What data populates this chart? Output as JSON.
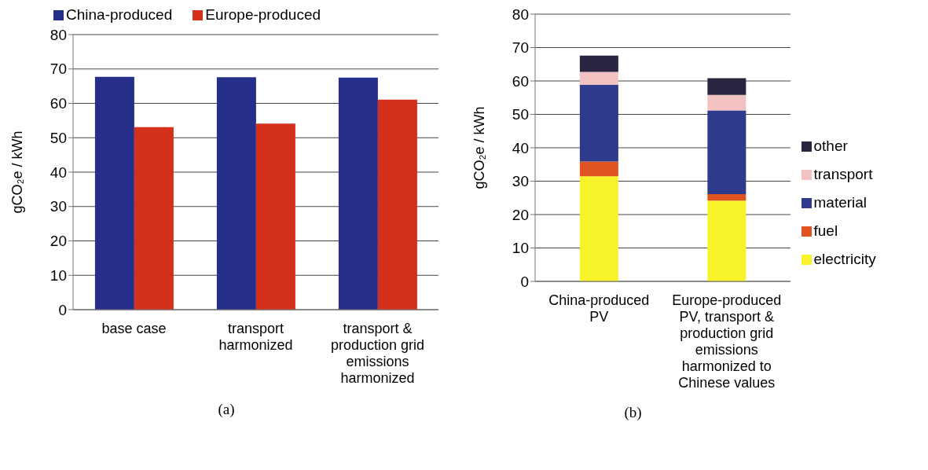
{
  "chart_data": [
    {
      "type": "bar",
      "categories": [
        "base case",
        "transport harmonized",
        "transport & production grid emissions harmonized"
      ],
      "ylabel": "gCO₂e / kWh",
      "ylim": [
        0,
        80
      ],
      "yticks": [
        0,
        10,
        20,
        30,
        40,
        50,
        60,
        70,
        80
      ],
      "grid": "y",
      "legend": "top",
      "annotations": [
        "(a)"
      ],
      "series": [
        {
          "name": "China-produced",
          "color": "#252f8a",
          "values": [
            67.7,
            67.6,
            67.5
          ]
        },
        {
          "name": "Europe-produced",
          "color": "#d4301c",
          "values": [
            53.1,
            54.1,
            61.1
          ]
        }
      ]
    },
    {
      "type": "bar",
      "stacked": true,
      "categories": [
        "China-produced PV",
        "Europe-produced PV, transport & production grid emissions harmonized to Chinese values"
      ],
      "ylabel": "gCO₂e / kWh",
      "ylim": [
        0,
        80
      ],
      "yticks": [
        0,
        10,
        20,
        30,
        40,
        50,
        60,
        70,
        80
      ],
      "grid": "y",
      "legend": "right",
      "annotations": [
        "(b)"
      ],
      "series": [
        {
          "name": "electricity",
          "color": "#f8f22a",
          "values": [
            31.5,
            24.2
          ]
        },
        {
          "name": "fuel",
          "color": "#df5420",
          "values": [
            4.4,
            1.9
          ]
        },
        {
          "name": "material",
          "color": "#2e3a8c",
          "values": [
            22.9,
            25.1
          ]
        },
        {
          "name": "transport",
          "color": "#f2c2c2",
          "values": [
            3.9,
            4.6
          ]
        },
        {
          "name": "other",
          "color": "#2a2440",
          "values": [
            4.9,
            5.0
          ]
        }
      ]
    }
  ]
}
